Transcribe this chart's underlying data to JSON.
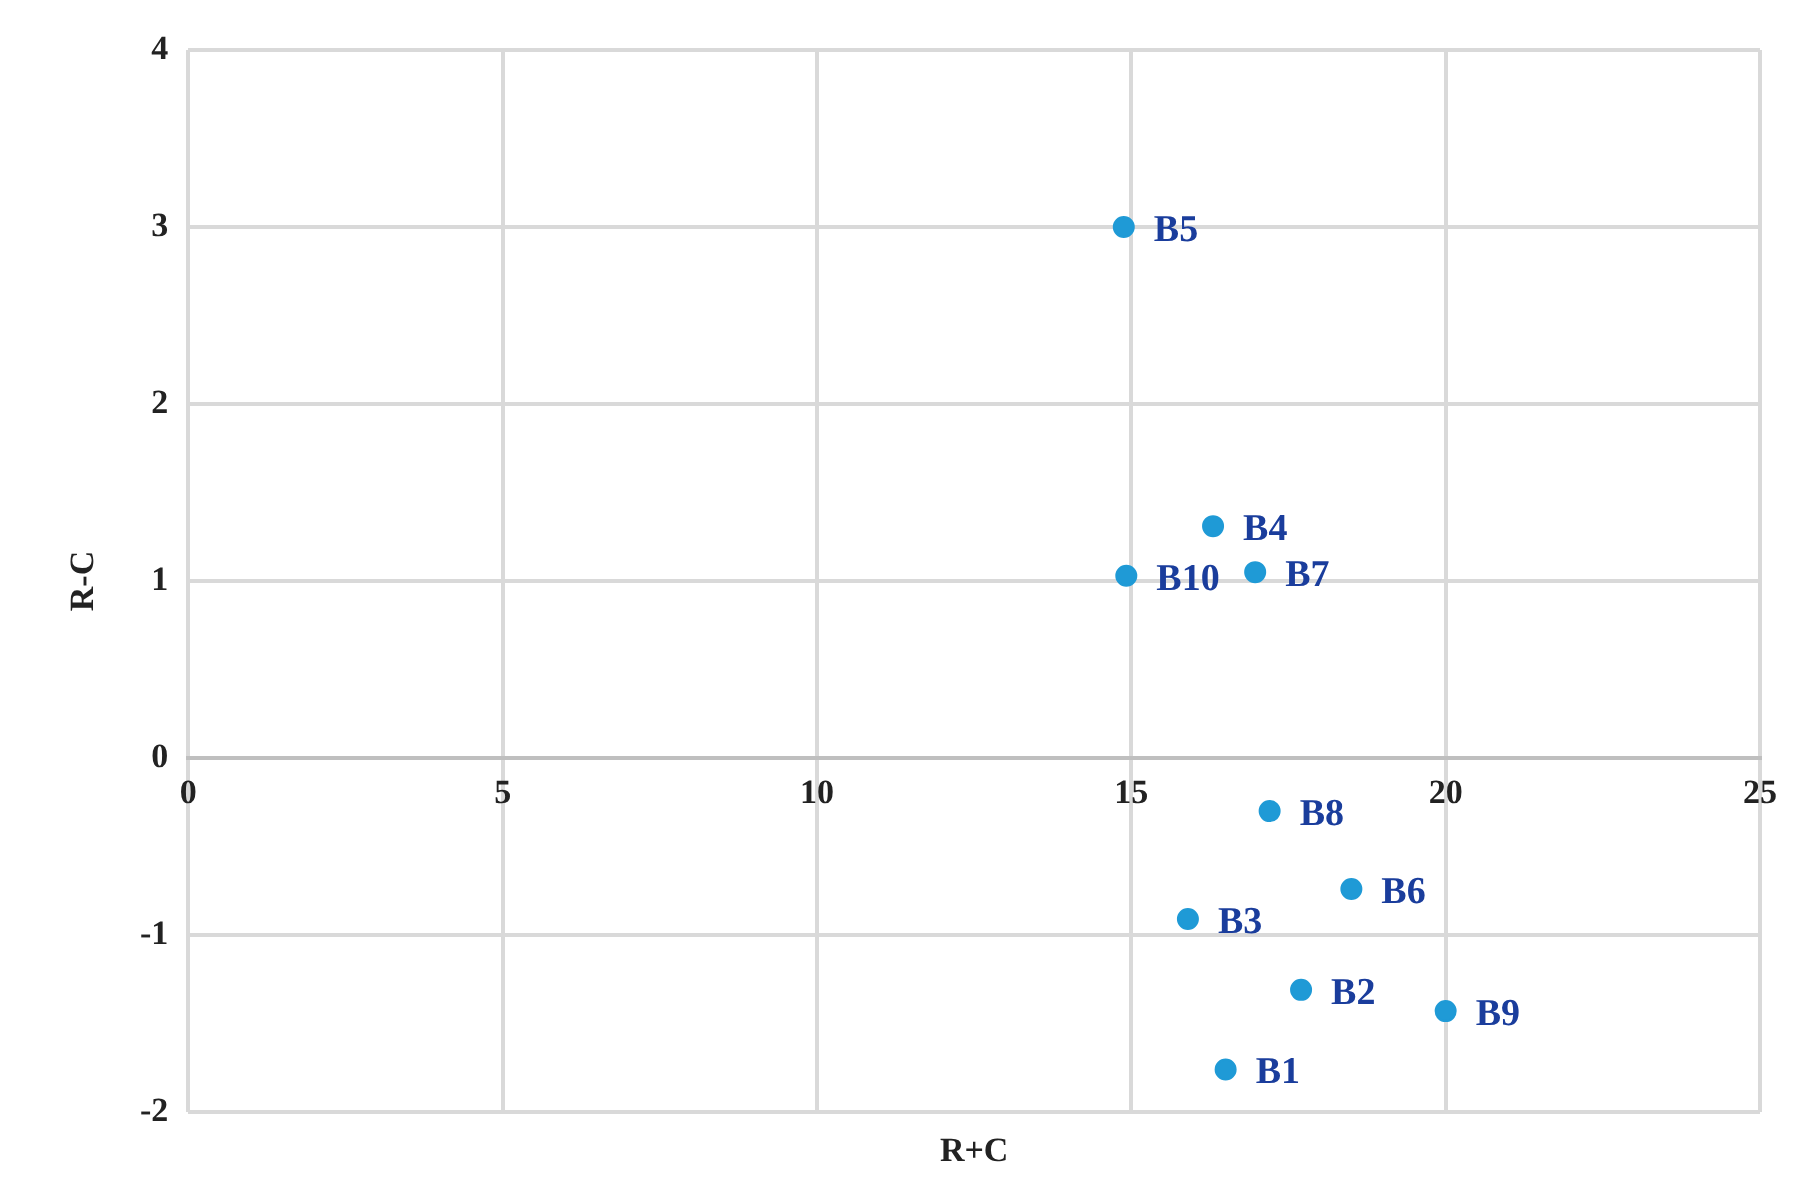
{
  "chart_data": {
    "type": "scatter",
    "xlabel": "R+C",
    "ylabel": "R-C",
    "x": [
      16.5,
      17.7,
      15.9,
      16.3,
      14.88,
      18.5,
      16.97,
      17.2,
      20.0,
      14.92
    ],
    "values": [
      -1.76,
      -1.31,
      -0.91,
      1.31,
      3.0,
      -0.74,
      1.05,
      -0.3,
      -1.43,
      1.03
    ],
    "color": "#1f9ad6",
    "marker": "circle",
    "grid": true,
    "legend": false,
    "xlim": [
      0,
      25
    ],
    "xticks": [
      0,
      5,
      10,
      15,
      20,
      25
    ],
    "ylim": [
      -2,
      4
    ],
    "yticks": [
      -2,
      -1,
      0,
      1,
      2,
      3,
      4
    ],
    "annotations": [
      {
        "text": "B1",
        "x": 16.5,
        "y": -1.76
      },
      {
        "text": "B2",
        "x": 17.7,
        "y": -1.31
      },
      {
        "text": "B3",
        "x": 15.9,
        "y": -0.91
      },
      {
        "text": "B4",
        "x": 16.3,
        "y": 1.31
      },
      {
        "text": "B5",
        "x": 14.88,
        "y": 3.0
      },
      {
        "text": "B6",
        "x": 18.5,
        "y": -0.74
      },
      {
        "text": "B7",
        "x": 16.97,
        "y": 1.05
      },
      {
        "text": "B8",
        "x": 17.2,
        "y": -0.3
      },
      {
        "text": "B9",
        "x": 20.0,
        "y": -1.43
      },
      {
        "text": "B10",
        "x": 14.92,
        "y": 1.03
      }
    ]
  }
}
